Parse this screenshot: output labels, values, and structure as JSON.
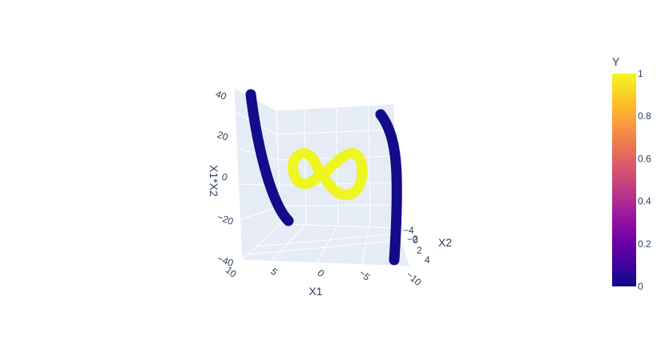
{
  "chart_data": {
    "type": "scatter3d",
    "axes": {
      "x": {
        "label": "X1",
        "ticks": [
          "10",
          "5",
          "0",
          "−5",
          "−10"
        ]
      },
      "y": {
        "label": "X2",
        "ticks": [
          "−4",
          "−2",
          "0",
          "2",
          "4"
        ]
      },
      "z": {
        "label": "X1*X2",
        "ticks": [
          "40",
          "20",
          "0",
          "−20",
          "−40"
        ]
      }
    },
    "series": [
      {
        "value": 0,
        "points": [
          {
            "x": 9,
            "y": -3.5,
            "z": 42
          },
          {
            "x": 8,
            "y": -3.0,
            "z": 30
          },
          {
            "x": 7,
            "y": -2.5,
            "z": 15
          },
          {
            "x": 6,
            "y": -2.0,
            "z": 0
          },
          {
            "x": 5,
            "y": -1.5,
            "z": -12
          },
          {
            "x": 4,
            "y": -1.0,
            "z": -22
          }
        ]
      },
      {
        "value": 0,
        "points": [
          {
            "x": -8,
            "y": -4.0,
            "z": 40
          },
          {
            "x": -9,
            "y": -2.5,
            "z": 20
          },
          {
            "x": -9.5,
            "y": -1.0,
            "z": 0
          },
          {
            "x": -9.8,
            "y": 0.5,
            "z": -20
          },
          {
            "x": -10,
            "y": 2.0,
            "z": -40
          }
        ]
      },
      {
        "value": 1,
        "shape": "figure-eight",
        "points": [
          {
            "x": 0,
            "y": 0,
            "z": 0
          },
          {
            "x": 2,
            "y": 1,
            "z": 8
          },
          {
            "x": 4,
            "y": 1,
            "z": 15
          },
          {
            "x": 5,
            "y": 0,
            "z": 10
          },
          {
            "x": 4,
            "y": -1,
            "z": 2
          },
          {
            "x": 2,
            "y": -1,
            "z": -2
          },
          {
            "x": 0,
            "y": 0,
            "z": 0
          },
          {
            "x": -2,
            "y": 1,
            "z": -8
          },
          {
            "x": -4,
            "y": 1,
            "z": -15
          },
          {
            "x": -5,
            "y": 0,
            "z": -10
          },
          {
            "x": -4,
            "y": -1,
            "z": 5
          },
          {
            "x": -2,
            "y": -1,
            "z": 12
          },
          {
            "x": 0,
            "y": 0,
            "z": 0
          }
        ]
      }
    ],
    "colorbar": {
      "title": "Y",
      "ticks": [
        "1",
        "0.8",
        "0.6",
        "0.4",
        "0.2",
        "0"
      ],
      "range": [
        0,
        1
      ],
      "colorscale": [
        "#0d0887",
        "#46039f",
        "#7201a8",
        "#9c179e",
        "#bd3786",
        "#d8576b",
        "#ed7953",
        "#fb9f3a",
        "#fdca26",
        "#f0f921"
      ]
    },
    "colors": {
      "low": "#120c8a",
      "high": "#eef520",
      "pane": "#e5ecf6",
      "grid": "#ffffff",
      "text": "#2a3f5f"
    }
  }
}
